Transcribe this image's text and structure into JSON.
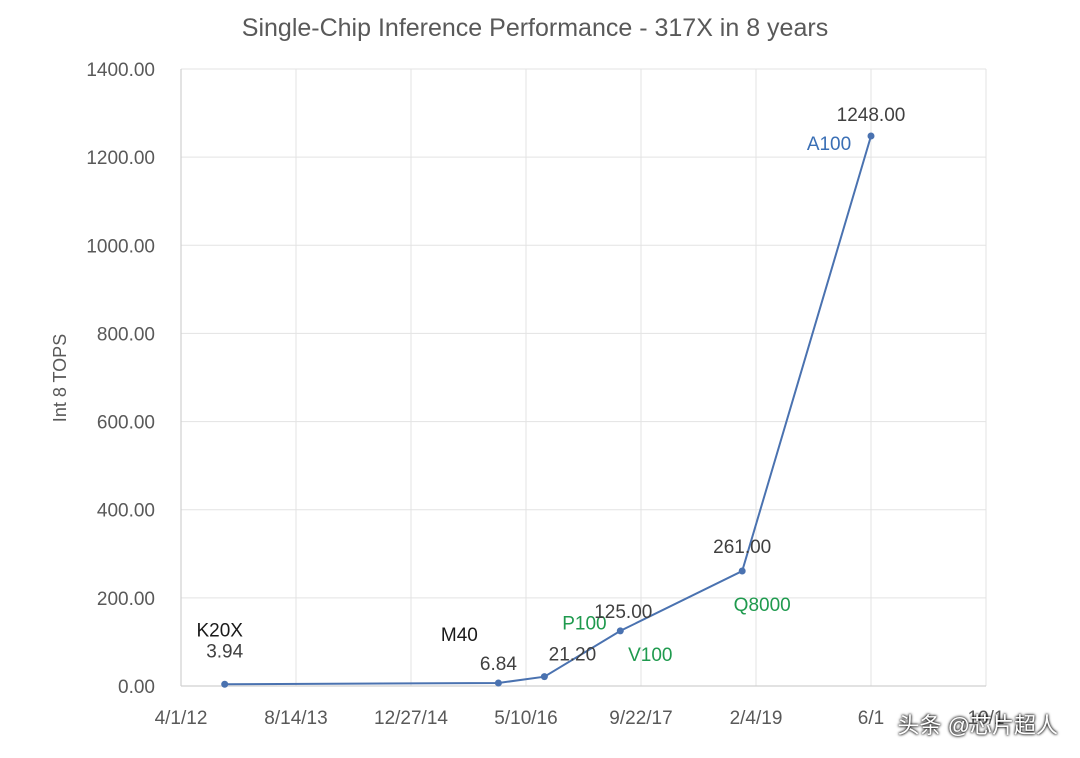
{
  "chart_data": {
    "type": "line",
    "title": "Single-Chip Inference Performance - 317X in 8 years",
    "ylabel": "Int 8 TOPS",
    "xlabel": "",
    "ylim": [
      0,
      1400
    ],
    "y_ticks": [
      "0.00",
      "200.00",
      "400.00",
      "600.00",
      "800.00",
      "1000.00",
      "1200.00",
      "1400.00"
    ],
    "x_ticks": [
      "4/1/12",
      "8/14/13",
      "12/27/14",
      "5/10/16",
      "9/22/17",
      "2/4/19",
      "6/1",
      "10/1"
    ],
    "x_tick_days": [
      0,
      500,
      1000,
      1500,
      2000,
      2500,
      3000,
      3500
    ],
    "grid": true,
    "line_color": "#4a72b0",
    "points": [
      {
        "day": 190,
        "value": 3.94,
        "label": "3.94",
        "name": "K20X",
        "name_color": "#1a1a1a"
      },
      {
        "day": 1380,
        "value": 6.84,
        "label": "6.84",
        "name": "M40",
        "name_color": "#1a1a1a"
      },
      {
        "day": 1580,
        "value": 21.2,
        "label": "21.20",
        "name": "P100",
        "name_color": "#1f9a4e"
      },
      {
        "day": 1910,
        "value": 125.0,
        "label": "125.00",
        "name": "V100",
        "name_color": "#1f9a4e"
      },
      {
        "day": 2440,
        "value": 261.0,
        "label": "261.00",
        "name": "Q8000",
        "name_color": "#1f9a4e"
      },
      {
        "day": 3000,
        "value": 1248.0,
        "label": "1248.00",
        "name": "A100",
        "name_color": "#3a6fb5"
      }
    ]
  },
  "watermark": "头条 @芯片超人"
}
